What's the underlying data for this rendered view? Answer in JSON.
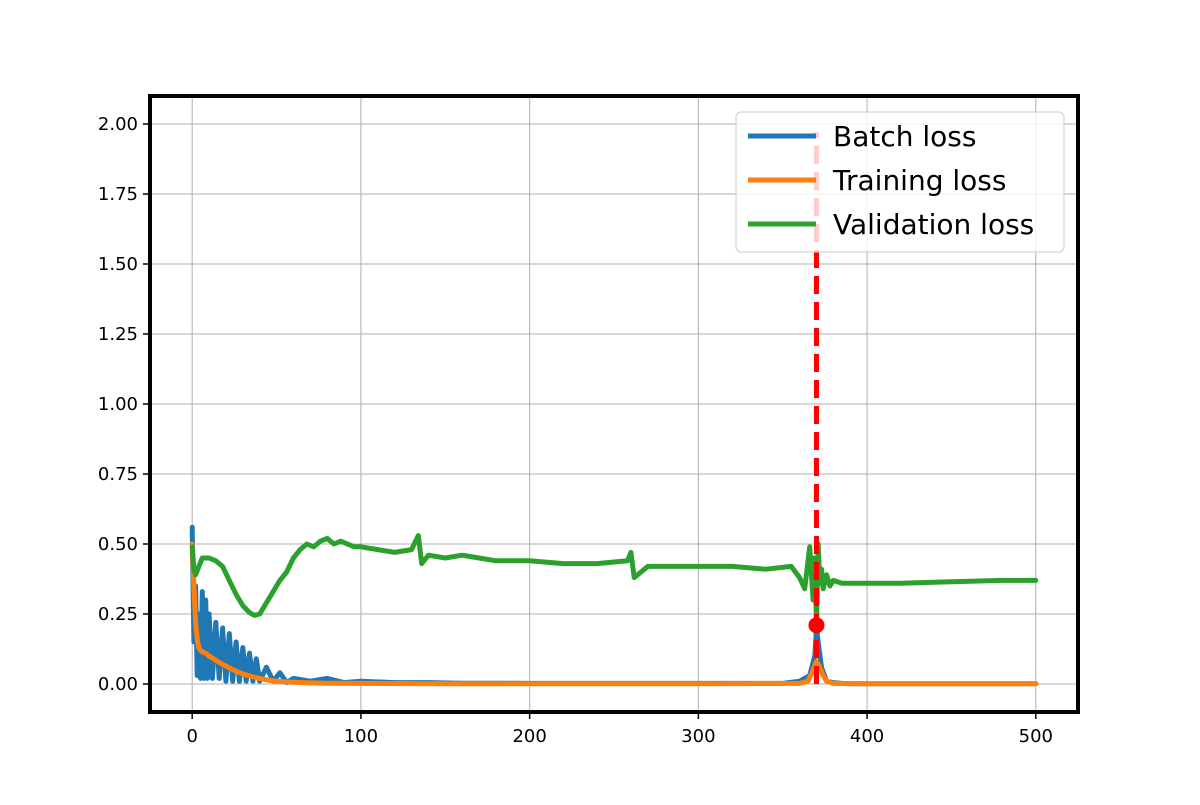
{
  "chart_data": {
    "type": "line",
    "title": "",
    "xlabel": "",
    "ylabel": "",
    "xlim": [
      -25,
      525
    ],
    "ylim": [
      -0.1,
      2.1
    ],
    "x_ticks": [
      0,
      100,
      200,
      300,
      400,
      500
    ],
    "x_tick_labels": [
      "0",
      "100",
      "200",
      "300",
      "400",
      "500"
    ],
    "y_ticks": [
      0.0,
      0.25,
      0.5,
      0.75,
      1.0,
      1.25,
      1.5,
      1.75,
      2.0
    ],
    "y_tick_labels": [
      "0.00",
      "0.25",
      "0.50",
      "0.75",
      "1.00",
      "1.25",
      "1.50",
      "1.75",
      "2.00"
    ],
    "grid": true,
    "legend_placement": "top-right",
    "series": [
      {
        "name": "Batch loss",
        "color": "#1f77b4",
        "x": [
          0,
          1,
          2,
          3,
          4,
          5,
          6,
          7,
          8,
          9,
          10,
          12,
          14,
          16,
          18,
          20,
          22,
          24,
          26,
          28,
          30,
          32,
          34,
          36,
          38,
          40,
          44,
          48,
          52,
          56,
          60,
          70,
          80,
          90,
          100,
          120,
          140,
          160,
          180,
          200,
          250,
          300,
          350,
          360,
          366,
          369,
          370,
          371,
          373,
          376,
          380,
          385,
          390,
          400,
          450,
          500
        ],
        "y": [
          0.56,
          0.15,
          0.35,
          0.03,
          0.25,
          0.02,
          0.33,
          0.02,
          0.3,
          0.02,
          0.25,
          0.02,
          0.22,
          0.02,
          0.2,
          0.01,
          0.18,
          0.01,
          0.15,
          0.01,
          0.13,
          0.01,
          0.11,
          0.01,
          0.09,
          0.01,
          0.06,
          0.01,
          0.04,
          0.005,
          0.02,
          0.01,
          0.02,
          0.005,
          0.01,
          0.005,
          0.005,
          0.003,
          0.003,
          0.002,
          0.002,
          0.002,
          0.002,
          0.01,
          0.03,
          0.1,
          0.2,
          0.15,
          0.06,
          0.01,
          0.005,
          0.002,
          0.001,
          0.001,
          0.001,
          0.001
        ]
      },
      {
        "name": "Training loss",
        "color": "#ff7f0e",
        "x": [
          0,
          1,
          2,
          3,
          4,
          5,
          6,
          8,
          10,
          14,
          18,
          22,
          26,
          30,
          35,
          40,
          45,
          50,
          60,
          70,
          80,
          100,
          150,
          200,
          300,
          360,
          365,
          368,
          370,
          372,
          374,
          376,
          380,
          400,
          500
        ],
        "y": [
          0.5,
          0.35,
          0.22,
          0.16,
          0.13,
          0.12,
          0.115,
          0.11,
          0.1,
          0.085,
          0.07,
          0.058,
          0.046,
          0.036,
          0.027,
          0.02,
          0.014,
          0.01,
          0.006,
          0.004,
          0.003,
          0.002,
          0.001,
          0.001,
          0.001,
          0.002,
          0.01,
          0.05,
          0.08,
          0.06,
          0.03,
          0.01,
          0.002,
          0.001,
          0.001
        ]
      },
      {
        "name": "Validation loss",
        "color": "#2ca02c",
        "x": [
          0,
          1,
          2,
          4,
          6,
          8,
          10,
          14,
          18,
          22,
          26,
          30,
          34,
          37,
          40,
          44,
          48,
          52,
          56,
          60,
          64,
          68,
          72,
          76,
          80,
          84,
          88,
          92,
          96,
          100,
          110,
          120,
          130,
          134,
          136,
          140,
          150,
          160,
          170,
          180,
          190,
          200,
          220,
          240,
          258,
          260,
          262,
          270,
          280,
          300,
          320,
          340,
          355,
          360,
          363,
          366,
          368,
          369,
          370,
          371,
          372,
          373,
          374,
          376,
          378,
          380,
          385,
          390,
          400,
          420,
          450,
          480,
          500
        ],
        "y": [
          0.49,
          0.41,
          0.39,
          0.42,
          0.45,
          0.45,
          0.45,
          0.44,
          0.42,
          0.37,
          0.32,
          0.28,
          0.255,
          0.245,
          0.25,
          0.29,
          0.33,
          0.37,
          0.4,
          0.45,
          0.48,
          0.5,
          0.49,
          0.51,
          0.52,
          0.5,
          0.51,
          0.5,
          0.49,
          0.49,
          0.48,
          0.47,
          0.48,
          0.53,
          0.43,
          0.46,
          0.45,
          0.46,
          0.45,
          0.44,
          0.44,
          0.44,
          0.43,
          0.43,
          0.44,
          0.47,
          0.38,
          0.42,
          0.42,
          0.42,
          0.42,
          0.41,
          0.42,
          0.38,
          0.34,
          0.49,
          0.3,
          0.45,
          0.21,
          0.5,
          0.36,
          0.41,
          0.34,
          0.39,
          0.35,
          0.37,
          0.36,
          0.36,
          0.36,
          0.36,
          0.365,
          0.37,
          0.37
        ]
      }
    ],
    "annotations": [
      {
        "kind": "vertical-line",
        "x": 370,
        "y_from": 0.0,
        "y_to": 1.97,
        "style": "dashed",
        "color": "#ff0000"
      },
      {
        "kind": "marker",
        "x": 370,
        "y": 0.21,
        "color": "#ff0000"
      }
    ]
  }
}
